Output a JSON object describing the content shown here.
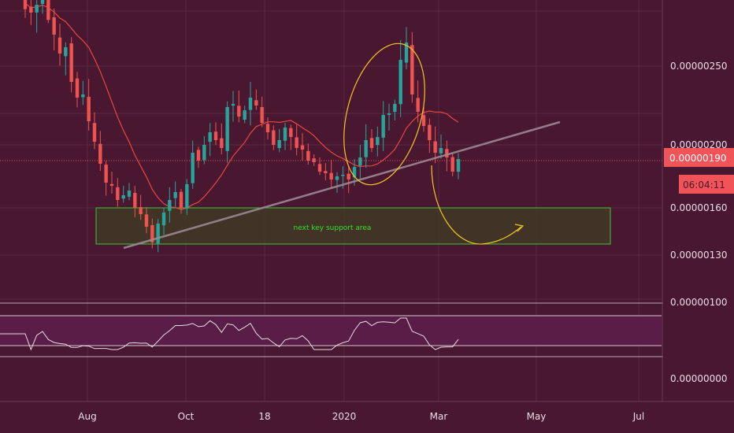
{
  "colors": {
    "background": "#4a1731",
    "grid": "#5b2a42",
    "up": "#26a69a",
    "down": "#ef5350",
    "ma": "#e8473b",
    "trendline": "#9a8a92",
    "ellipse": "#f2c521",
    "support_border": "#3cc43a",
    "support_fill": "#3f3a26",
    "rsi_band": "#5a1d48",
    "rsi_line": "#e5dce1",
    "price_tag": "#f05458"
  },
  "chart_data": {
    "type": "candlestick",
    "price_axis_labels": [
      "0.00000250",
      "0.00000200",
      "0.00000160",
      "0.00000130",
      "0.00000100"
    ],
    "price_axis_values": [
      2.5e-06,
      2e-06,
      1.6e-06,
      1.3e-06,
      1e-06
    ],
    "price_ylim": [
      1e-06,
      2.8e-06
    ],
    "time_labels": [
      "Aug",
      "Oct",
      "18",
      "2020",
      "Mar",
      "May",
      "Jul"
    ],
    "current_price_label": "0.00000190",
    "current_price": 1.9e-06,
    "countdown_label": "06:04:11",
    "support_zone": {
      "label": "next key support area",
      "low": 1.37e-06,
      "high": 1.6e-06
    },
    "oscillator_axis_label": "0.00000000",
    "series": [
      {
        "values": [
          2.9e-06,
          2.84e-06,
          2.89e-06,
          2.92e-06,
          2.81e-06,
          2.7e-06,
          2.58e-06,
          2.62e-06,
          2.4e-06,
          2.3e-06,
          2.32e-06,
          2.15e-06,
          2.02e-06,
          1.88e-06,
          1.76e-06,
          1.74e-06,
          1.65e-06,
          1.68e-06,
          1.71e-06,
          1.6e-06,
          1.56e-06,
          1.48e-06,
          1.38e-06,
          1.5e-06,
          1.57e-06,
          1.65e-06,
          1.7e-06,
          1.6e-06,
          1.75e-06,
          1.95e-06,
          1.9e-06,
          2e-06,
          2.08e-06,
          2.03e-06,
          1.98e-06,
          2.24e-06,
          2.26e-06,
          2.18e-06,
          2.22e-06,
          2.3e-06,
          2.25e-06,
          2.14e-06,
          2.08e-06,
          2e-06,
          2.03e-06,
          2.11e-06,
          2.05e-06,
          1.98e-06,
          1.97e-06,
          1.9e-06,
          1.89e-06,
          1.83e-06,
          1.82e-06,
          1.78e-06,
          1.8e-06,
          1.81e-06,
          1.78e-06,
          1.86e-06,
          1.92e-06,
          2.03e-06,
          1.98e-06,
          2.05e-06,
          2.19e-06,
          2.2e-06,
          2.26e-06,
          2.54e-06,
          2.65e-06,
          2.32e-06,
          2.21e-06,
          2.12e-06,
          2.03e-06,
          1.95e-06,
          1.98e-06,
          1.92e-06,
          1.83e-06,
          1.91e-06
        ]
      }
    ]
  }
}
